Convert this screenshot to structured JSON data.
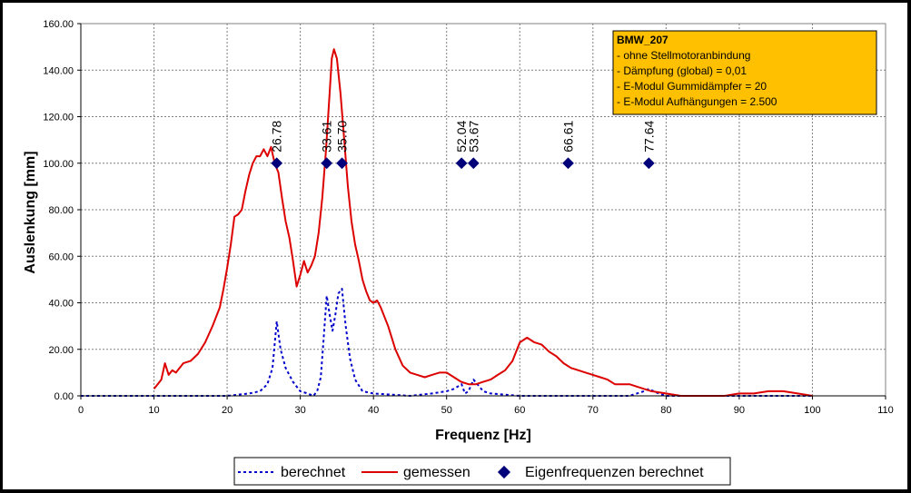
{
  "chart_data": {
    "type": "line",
    "xlabel": "Frequenz [Hz]",
    "ylabel": "Auslenkung [mm]",
    "xlim": [
      0,
      110
    ],
    "ylim": [
      0,
      160
    ],
    "x_ticks": [
      "0",
      "10",
      "20",
      "30",
      "40",
      "50",
      "60",
      "70",
      "80",
      "90",
      "100",
      "110"
    ],
    "y_ticks": [
      "0.00",
      "20.00",
      "40.00",
      "60.00",
      "80.00",
      "100.00",
      "120.00",
      "140.00",
      "160.00"
    ],
    "grid": true,
    "legend_position": "bottom",
    "series": [
      {
        "name": "berechnet",
        "color": "#0000CC",
        "style": "dotted",
        "x": [
          0,
          10,
          20,
          23,
          24.5,
          25.5,
          26.2,
          26.78,
          27.3,
          28,
          29,
          30,
          31,
          31.8,
          32.3,
          32.8,
          33.2,
          33.61,
          34,
          34.4,
          34.8,
          35.2,
          35.7,
          36.2,
          36.8,
          37.5,
          38.5,
          40,
          45,
          48,
          50,
          51,
          52.04,
          52.5,
          53,
          53.67,
          54.2,
          55,
          56,
          60,
          65,
          70,
          75,
          76,
          77,
          77.64,
          78.3,
          79,
          80,
          85,
          90,
          100
        ],
        "y": [
          0,
          0,
          0,
          1,
          2,
          5,
          12,
          32,
          20,
          12,
          6,
          2,
          1,
          0,
          2,
          8,
          25,
          43,
          35,
          28,
          35,
          44,
          46,
          30,
          16,
          7,
          2,
          1,
          0,
          1,
          2,
          3,
          5,
          1,
          2,
          7,
          5,
          2,
          1,
          0,
          0,
          0,
          0,
          1,
          2,
          3,
          2,
          1,
          0,
          0,
          0,
          0
        ]
      },
      {
        "name": "gemessen",
        "color": "#DD0000",
        "style": "solid",
        "x": [
          10,
          10.5,
          11,
          11.5,
          12,
          12.5,
          13,
          14,
          15,
          16,
          17,
          18,
          19,
          19.5,
          20,
          20.5,
          21,
          21.5,
          22,
          22.5,
          23,
          23.5,
          24,
          24.5,
          25,
          25.5,
          26,
          26.5,
          27,
          27.5,
          28,
          28.5,
          29,
          29.5,
          30,
          30.5,
          31,
          31.5,
          32,
          32.5,
          33,
          33.5,
          34,
          34.3,
          34.6,
          35,
          35.5,
          36,
          36.5,
          37,
          37.5,
          38,
          38.5,
          39,
          39.5,
          40,
          40.5,
          41,
          42,
          43,
          44,
          45,
          46,
          47,
          48,
          49,
          50,
          51,
          52,
          53,
          54,
          55,
          56,
          57,
          58,
          59,
          60,
          61,
          62,
          63,
          64,
          65,
          66,
          67,
          68,
          69,
          70,
          71,
          72,
          73,
          74,
          75,
          76,
          78,
          80,
          82,
          84,
          86,
          88,
          90,
          92,
          94,
          96,
          98,
          100
        ],
        "y": [
          3,
          5,
          7,
          14,
          9,
          11,
          10,
          14,
          15,
          18,
          23,
          30,
          38,
          46,
          55,
          65,
          77,
          78,
          80,
          88,
          95,
          100,
          103,
          103,
          106,
          103,
          107,
          100,
          96,
          85,
          75,
          68,
          58,
          47,
          52,
          58,
          53,
          56,
          60,
          70,
          85,
          105,
          130,
          145,
          149,
          145,
          130,
          110,
          90,
          75,
          65,
          58,
          50,
          45,
          41,
          40,
          41,
          38,
          30,
          20,
          13,
          10,
          9,
          8,
          9,
          10,
          10,
          8,
          6,
          5,
          5,
          6,
          7,
          9,
          11,
          15,
          23,
          25,
          23,
          22,
          19,
          17,
          14,
          12,
          11,
          10,
          9,
          8,
          7,
          5,
          5,
          5,
          4,
          2,
          1,
          0,
          0,
          0,
          0,
          1,
          1,
          2,
          2,
          1,
          0
        ]
      },
      {
        "name": "Eigenfrequenzen berechnet",
        "color": "#00007A",
        "style": "marker",
        "x": [
          26.78,
          33.61,
          35.7,
          52.04,
          53.67,
          66.61,
          77.64
        ],
        "y": [
          100,
          100,
          100,
          100,
          100,
          100,
          100
        ],
        "labels": [
          "26.78",
          "33.61",
          "35.70",
          "52.04",
          "53.67",
          "66.61",
          "77.64"
        ]
      }
    ],
    "annotation": {
      "title": "BMW_207",
      "lines": [
        "- ohne Stellmotoranbindung",
        "- Dämpfung (global) = 0,01",
        "- E-Modul Gummidämpfer = 20",
        "- E-Modul Aufhängungen = 2.500"
      ],
      "fill": "#FFC000"
    }
  }
}
